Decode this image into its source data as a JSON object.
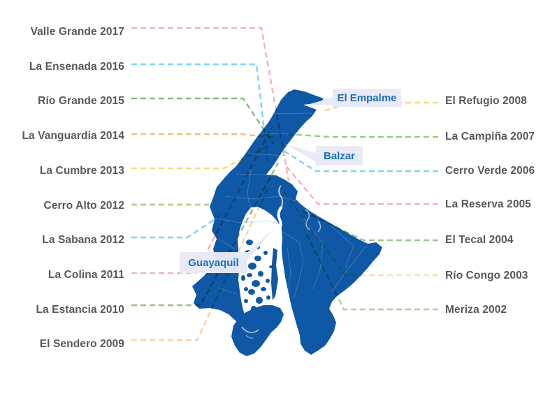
{
  "infographic": {
    "city_callouts": [
      {
        "name": "El Empalme"
      },
      {
        "name": "Balzar"
      },
      {
        "name": "Guayaquil"
      }
    ],
    "timeline_labels_left": [
      {
        "text": "Valle Grande 2017",
        "line_color": "#F7B0B4"
      },
      {
        "text": "La Ensenada 2016",
        "line_color": "#7FD2F4"
      },
      {
        "text": "Río Grande 2015",
        "line_color": "#83BA7B"
      },
      {
        "text": "La Vanguardia 2014",
        "line_color": "#F7BE7C"
      },
      {
        "text": "La Cumbre 2013",
        "line_color": "#F6D97E"
      },
      {
        "text": "Cerro Alto 2012",
        "line_color": "#AECB7D"
      },
      {
        "text": "La Sabana 2012",
        "line_color": "#7FD2F4"
      },
      {
        "text": "La Colina 2011",
        "line_color": "#F7B0B4"
      },
      {
        "text": "La Estancia 2010",
        "line_color": "#9CBB8E"
      },
      {
        "text": "El Sendero 2009",
        "line_color": "#FAD1A0"
      }
    ],
    "timeline_labels_right": [
      {
        "text": "El Refugio 2008",
        "line_color": "#F6D97E"
      },
      {
        "text": "La Campiña 2007",
        "line_color": "#97CB7D"
      },
      {
        "text": "Cerro Verde 2006",
        "line_color": "#7FD2F4"
      },
      {
        "text": "La Reserva 2005",
        "line_color": "#F7B0B4"
      },
      {
        "text": "El Tecal 2004",
        "line_color": "#9DC493"
      },
      {
        "text": "Río Congo 2003",
        "line_color": "#F8E5A1"
      },
      {
        "text": "Meriza 2002",
        "line_color": "#A9D48D"
      }
    ],
    "colors": {
      "map_fill": "#0F58A6",
      "map_district_boundary": "#7FA9D8",
      "label_text": "#57585B",
      "city_text": "#1A70B8",
      "city_box": "#E9E9F7",
      "background": "#FFFFFF"
    }
  }
}
